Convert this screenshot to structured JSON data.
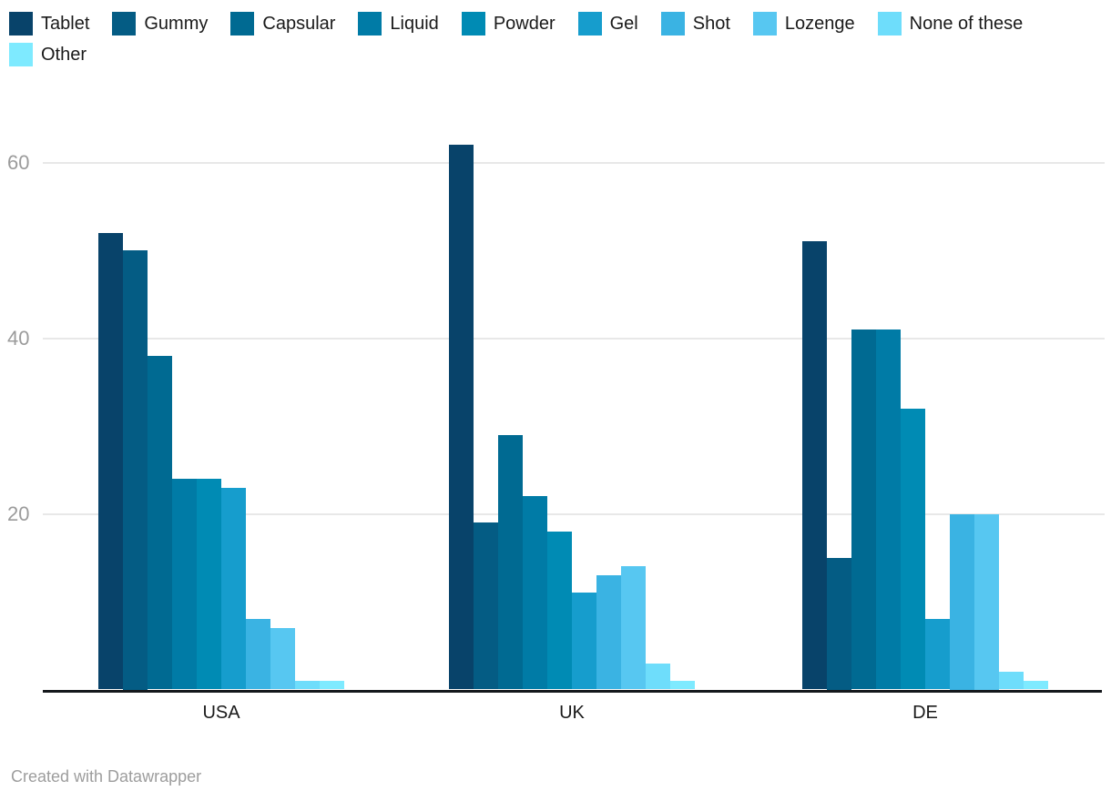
{
  "chart_data": {
    "type": "bar",
    "title": "",
    "categories": [
      "USA",
      "UK",
      "DE"
    ],
    "series": [
      {
        "name": "Tablet",
        "color": "#08436a",
        "values": [
          52,
          62,
          51
        ]
      },
      {
        "name": "Gummy",
        "color": "#045c84",
        "values": [
          50,
          19,
          15
        ]
      },
      {
        "name": "Capsular",
        "color": "#006a92",
        "values": [
          38,
          29,
          41
        ]
      },
      {
        "name": "Liquid",
        "color": "#007ba6",
        "values": [
          24,
          22,
          41
        ]
      },
      {
        "name": "Powder",
        "color": "#008bb4",
        "values": [
          24,
          18,
          32
        ]
      },
      {
        "name": "Gel",
        "color": "#169dcd",
        "values": [
          23,
          11,
          8
        ]
      },
      {
        "name": "Shot",
        "color": "#3ab3e3",
        "values": [
          8,
          13,
          20
        ]
      },
      {
        "name": "Lozenge",
        "color": "#57c7f1",
        "values": [
          7,
          14,
          20
        ]
      },
      {
        "name": "None of these",
        "color": "#6eddfb",
        "values": [
          1,
          3,
          2
        ]
      },
      {
        "name": "Other",
        "color": "#7eeaff",
        "values": [
          1,
          1,
          1
        ]
      }
    ],
    "ylim": [
      0,
      64
    ],
    "yticks": [
      20,
      40,
      60
    ],
    "grid": "horizontal",
    "legend_position": "top",
    "xlabel": "",
    "ylabel": ""
  },
  "attribution": {
    "label": "Created with Datawrapper"
  }
}
